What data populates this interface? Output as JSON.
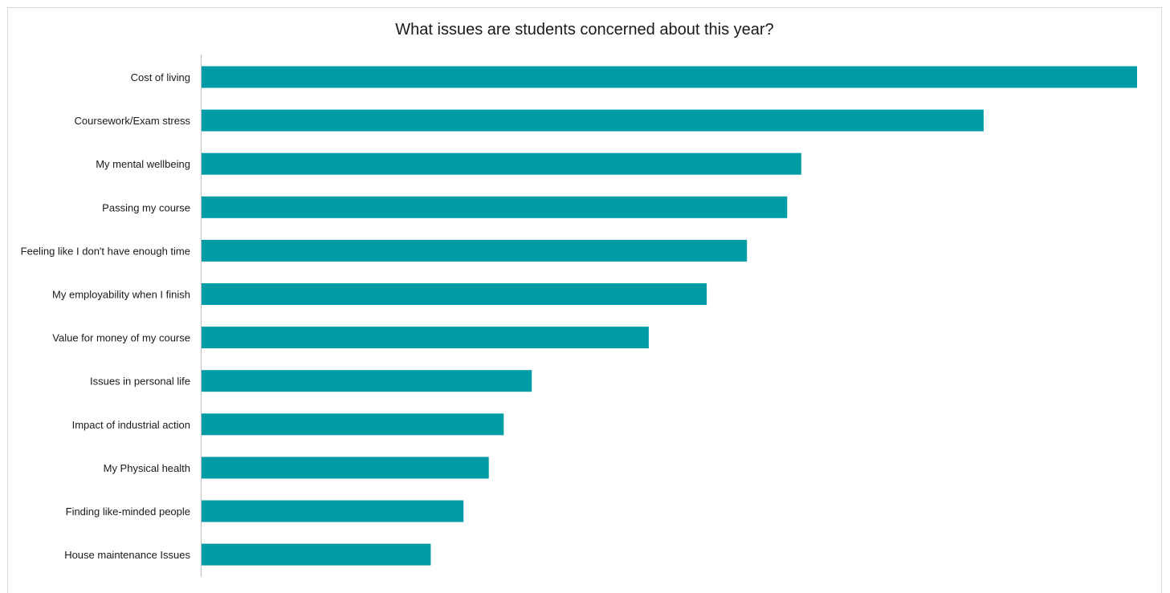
{
  "chart_data": {
    "type": "bar",
    "orientation": "horizontal",
    "title": "What issues are students concerned about this year?",
    "xlabel": "",
    "ylabel": "",
    "categories": [
      "Cost of living",
      "Coursework/Exam stress",
      "My mental wellbeing",
      "Passing my course",
      "Feeling like I don't have enough time",
      "My employability when I finish",
      "Value for money of my course",
      "Issues in personal life",
      "Impact of industrial action",
      "My Physical health",
      "Finding like-minded people",
      "House maintenance Issues"
    ],
    "values": [
      100,
      83.6,
      64.1,
      62.6,
      58.3,
      54.0,
      47.8,
      35.3,
      32.3,
      30.7,
      28.0,
      24.5
    ],
    "xlim": [
      0,
      100
    ],
    "bar_color": "#009ca6",
    "axis_color": "#bfbfbf",
    "grid": false,
    "legend": "none"
  }
}
